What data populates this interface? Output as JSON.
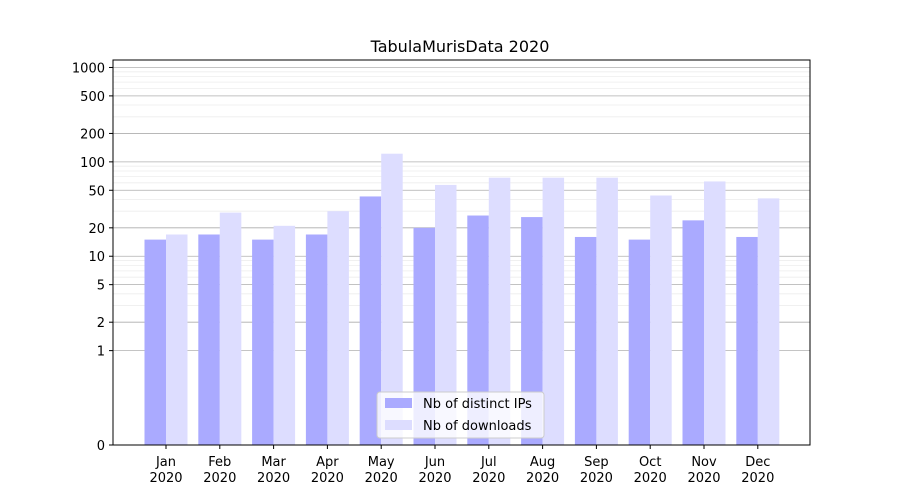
{
  "chart_data": {
    "type": "bar",
    "title": "TabulaMurisData 2020",
    "xlabel": "",
    "ylabel": "",
    "y_scale": "symlog",
    "ylim": [
      0,
      1200
    ],
    "grid": true,
    "legend_position": "bottom-center",
    "categories": [
      [
        "Jan",
        "2020"
      ],
      [
        "Feb",
        "2020"
      ],
      [
        "Mar",
        "2020"
      ],
      [
        "Apr",
        "2020"
      ],
      [
        "May",
        "2020"
      ],
      [
        "Jun",
        "2020"
      ],
      [
        "Jul",
        "2020"
      ],
      [
        "Aug",
        "2020"
      ],
      [
        "Sep",
        "2020"
      ],
      [
        "Oct",
        "2020"
      ],
      [
        "Nov",
        "2020"
      ],
      [
        "Dec",
        "2020"
      ]
    ],
    "y_ticks": [
      0,
      1,
      2,
      5,
      10,
      20,
      50,
      100,
      200,
      500,
      1000
    ],
    "series": [
      {
        "name": "Nb of distinct IPs",
        "color": "#aaaaff",
        "values": [
          15,
          17,
          15,
          17,
          43,
          20,
          27,
          26,
          16,
          15,
          24,
          16
        ]
      },
      {
        "name": "Nb of downloads",
        "color": "#ddddff",
        "values": [
          17,
          29,
          21,
          30,
          122,
          57,
          68,
          68,
          68,
          44,
          62,
          41
        ]
      }
    ]
  }
}
